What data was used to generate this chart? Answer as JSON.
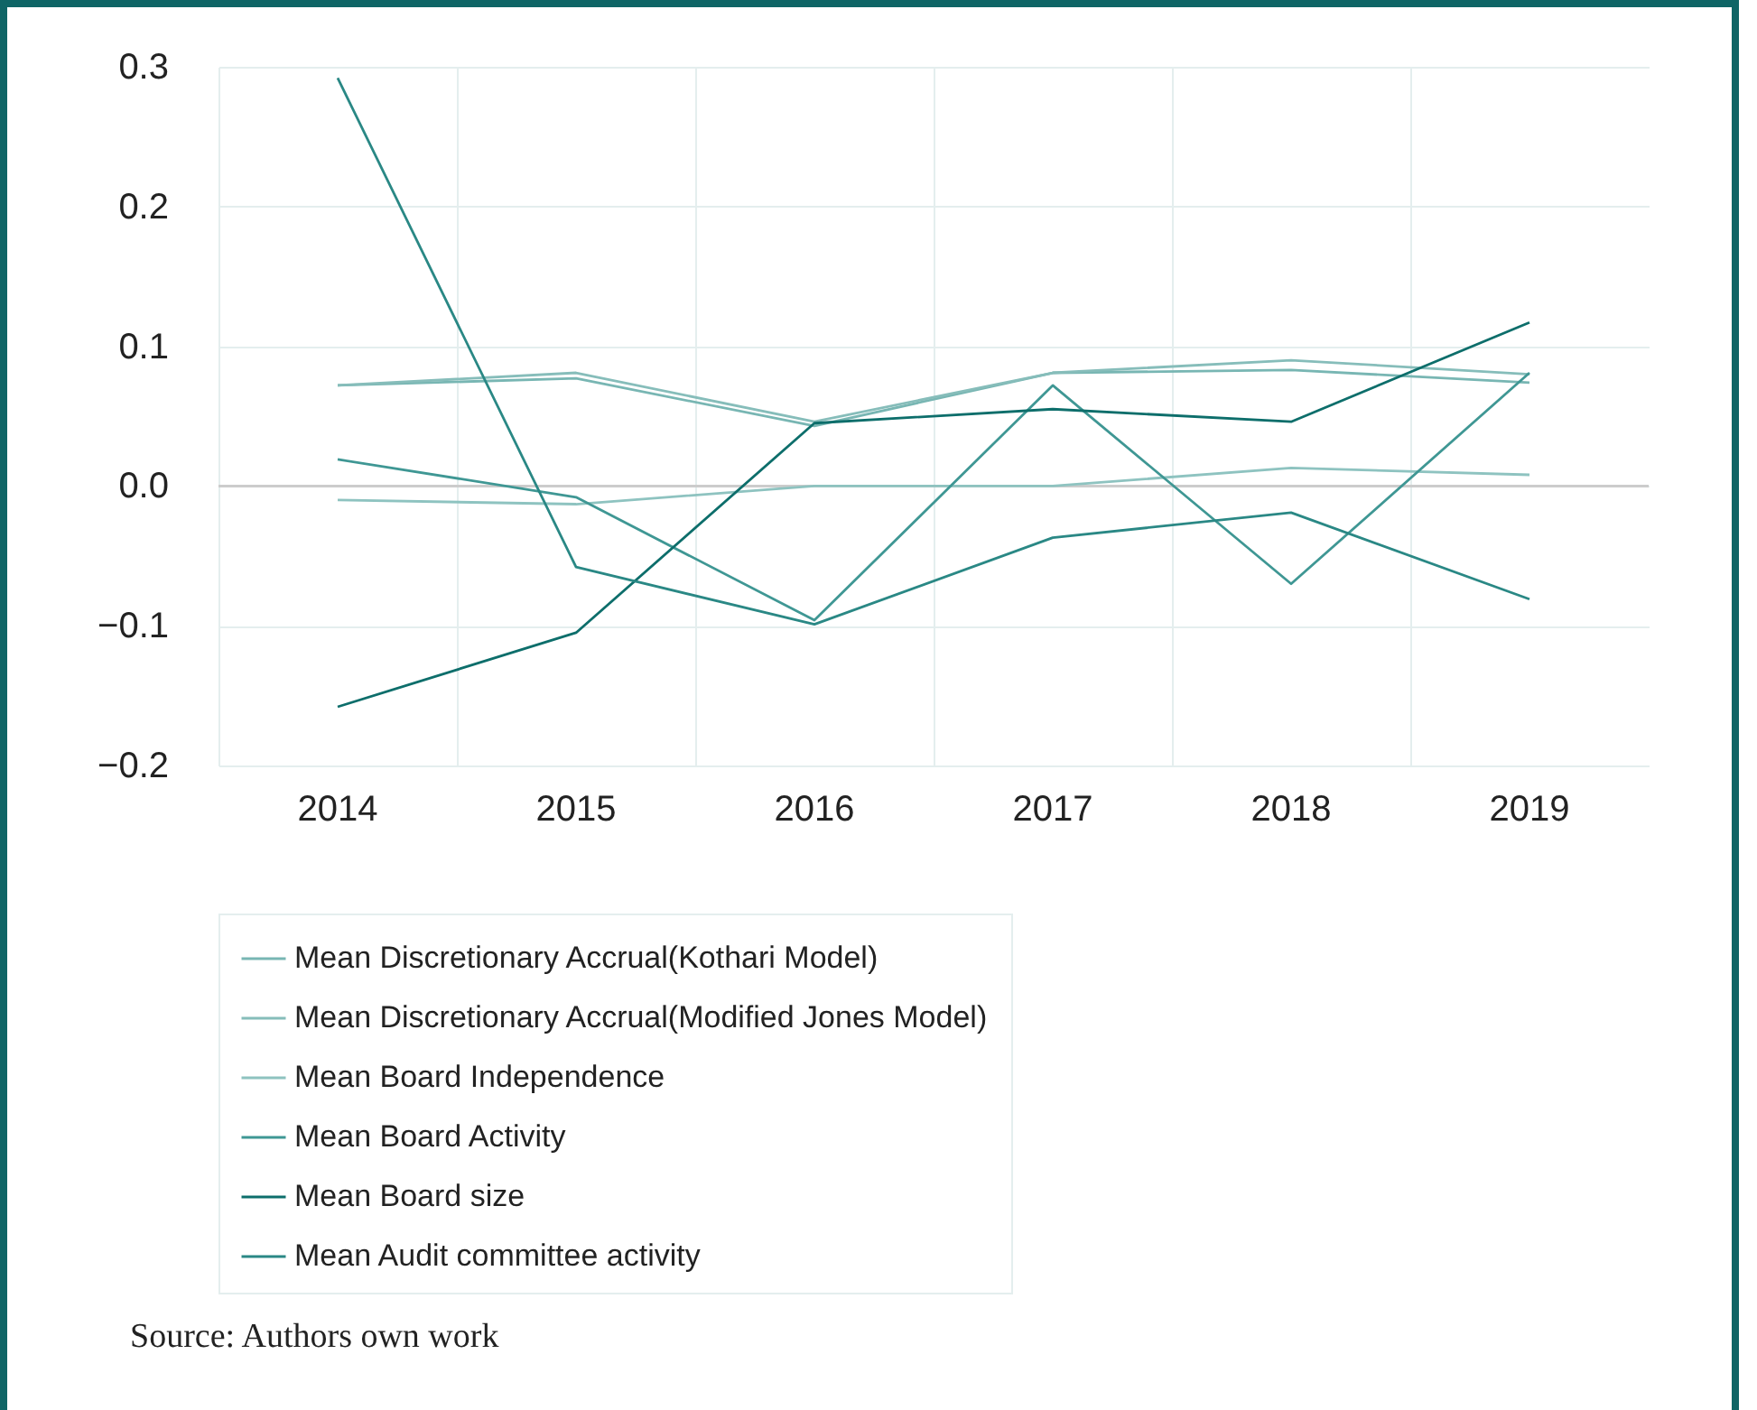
{
  "chart_data": {
    "type": "line",
    "categories": [
      "2014",
      "2015",
      "2016",
      "2017",
      "2018",
      "2019"
    ],
    "series": [
      {
        "name": "Mean Discretionary Accrual(Kothari Model)",
        "color": "#78b6b3",
        "values": [
          0.072,
          0.077,
          0.043,
          0.081,
          0.083,
          0.074
        ]
      },
      {
        "name": "Mean Discretionary Accrual(Modified Jones Model)",
        "color": "#86bdba",
        "values": [
          0.072,
          0.081,
          0.046,
          0.081,
          0.09,
          0.08
        ]
      },
      {
        "name": "Mean Board Independence",
        "color": "#8ec3c0",
        "values": [
          -0.01,
          -0.013,
          0.0,
          0.0,
          0.013,
          0.008
        ]
      },
      {
        "name": "Mean Board Activity",
        "color": "#3f9794",
        "values": [
          0.019,
          -0.008,
          -0.096,
          0.072,
          -0.07,
          0.081
        ]
      },
      {
        "name": "Mean Board size",
        "color": "#0d6e6b",
        "values": [
          -0.158,
          -0.105,
          0.045,
          0.055,
          0.046,
          0.117
        ]
      },
      {
        "name": "Mean Audit committee activity",
        "color": "#2a8885",
        "values": [
          0.292,
          -0.058,
          -0.099,
          -0.037,
          -0.019,
          -0.081
        ]
      }
    ],
    "ylim": [
      -0.2,
      0.3
    ],
    "yticks": [
      {
        "value": -0.2,
        "label": "−0.2"
      },
      {
        "value": -0.1,
        "label": "−0.1"
      },
      {
        "value": 0,
        "label": "0.0"
      },
      0.1,
      0.2,
      0.3
    ],
    "grid": true,
    "legend": "bottom",
    "marker": "none",
    "line_style": "solid",
    "ref_lines": [
      {
        "axis": "y",
        "value": 0,
        "color": "#cccccc"
      }
    ],
    "annotations": [
      "Source: Authors own work"
    ]
  }
}
